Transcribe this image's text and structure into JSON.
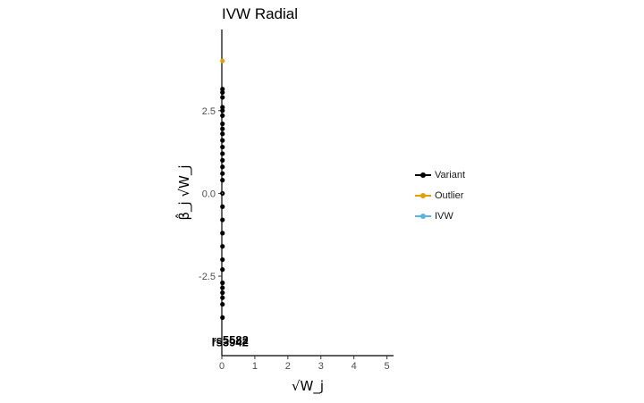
{
  "chart_data": {
    "type": "scatter",
    "title": "IVW Radial",
    "xlabel": "√W_j",
    "ylabel": "β̂_j √W_j",
    "xlim": [
      0,
      5.2
    ],
    "ylim": [
      -4.9,
      4.95
    ],
    "x_ticks": [
      "0",
      "1",
      "2",
      "3",
      "4",
      "5"
    ],
    "y_ticks": [
      "-2.5",
      "0.0",
      "2.5"
    ],
    "grid": false,
    "legend_position": "right",
    "colors": {
      "variant": "#000000",
      "outlier": "#E69F00",
      "ivw": "#56B4E9"
    },
    "series": [
      {
        "name": "Variant",
        "x": [
          0.02,
          0.02,
          0.02,
          0.02,
          0.02,
          0.02,
          0.02,
          0.02,
          0.02,
          0.02,
          0.02,
          0.02,
          0.02,
          0.02,
          0.02,
          0.02,
          0.02,
          0.02,
          0.02,
          0.02,
          0.02,
          0.02,
          0.02,
          0.02,
          0.02,
          0.02,
          0.02,
          0.02,
          0.02
        ],
        "y": [
          3.15,
          3.05,
          2.9,
          2.6,
          2.5,
          2.35,
          2.1,
          1.95,
          1.8,
          1.6,
          1.4,
          1.2,
          1.0,
          0.8,
          0.6,
          0.4,
          0.0,
          -0.4,
          -0.8,
          -1.2,
          -1.6,
          -2.0,
          -2.3,
          -2.7,
          -2.85,
          -3.0,
          -3.15,
          -3.35,
          -3.75
        ]
      },
      {
        "name": "Outlier",
        "x": [
          0.02
        ],
        "y": [
          4.0
        ]
      },
      {
        "name": "IVW",
        "type": "line",
        "x": [
          0,
          0.02
        ],
        "y": [
          0,
          0
        ]
      }
    ],
    "point_labels": [
      {
        "text": "rs5582",
        "x": 0.25,
        "y": -4.55
      },
      {
        "text": "rs3942",
        "x": 0.25,
        "y": -4.62
      }
    ]
  },
  "legend": {
    "items": [
      {
        "label": "Variant",
        "color": "#000000"
      },
      {
        "label": "Outlier",
        "color": "#E69F00"
      },
      {
        "label": "IVW",
        "color": "#56B4E9"
      }
    ]
  }
}
